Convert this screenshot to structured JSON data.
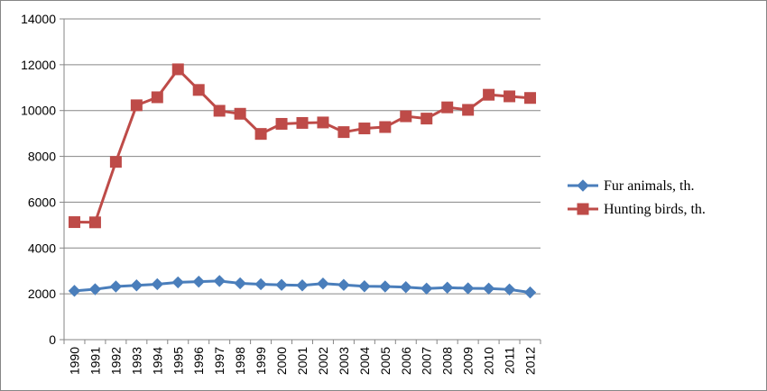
{
  "chart_data": {
    "type": "line",
    "title": "",
    "xlabel": "",
    "ylabel": "",
    "categories": [
      "1990",
      "1991",
      "1992",
      "1993",
      "1994",
      "1995",
      "1996",
      "1997",
      "1998",
      "1999",
      "2000",
      "2001",
      "2002",
      "2003",
      "2004",
      "2005",
      "2006",
      "2007",
      "2008",
      "2009",
      "2010",
      "2011",
      "2012"
    ],
    "ylim": [
      0,
      14000
    ],
    "yticks": [
      "0",
      "2000",
      "4000",
      "6000",
      "8000",
      "10000",
      "12000",
      "14000"
    ],
    "grid": "horizontal",
    "legend_position": "right",
    "series": [
      {
        "name": "Fur animals, th.",
        "color": "#4A7EBB",
        "marker": "diamond",
        "values": [
          2130,
          2200,
          2320,
          2370,
          2420,
          2500,
          2530,
          2560,
          2460,
          2420,
          2390,
          2370,
          2450,
          2390,
          2330,
          2320,
          2290,
          2230,
          2270,
          2240,
          2230,
          2190,
          2060
        ]
      },
      {
        "name": "Hunting birds, th.",
        "color": "#BE4B48",
        "marker": "square",
        "values": [
          5130,
          5120,
          7760,
          10230,
          10580,
          11800,
          10900,
          9990,
          9860,
          8980,
          9420,
          9460,
          9480,
          9060,
          9220,
          9280,
          9750,
          9650,
          10140,
          10030,
          10690,
          10620,
          10550
        ]
      }
    ]
  }
}
